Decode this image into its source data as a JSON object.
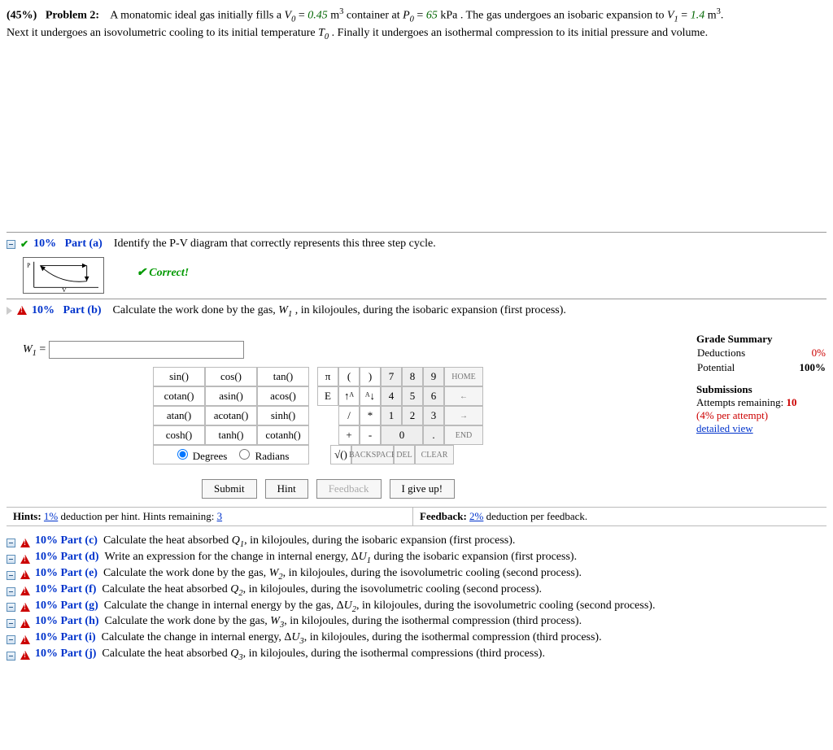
{
  "problem": {
    "percent": "(45%)",
    "label": "Problem 2:",
    "text_before_v0": "A monatomic ideal gas initially fills a ",
    "v0_sym": "V",
    "v0_sub": "0",
    "v0_eq": " = ",
    "v0_val": "0.45",
    "v0_unit": " m",
    "v0_exp": "3",
    "text_mid1": " container at ",
    "p0_sym": "P",
    "p0_sub": "0",
    "p0_eq": " = ",
    "p0_val": "65",
    "p0_unit": " kPa",
    "text_mid2": ". The gas undergoes an isobaric expansion to ",
    "v1_sym": "V",
    "v1_sub": "1",
    "v1_eq": " = ",
    "v1_val": "1.4",
    "v1_unit": " m",
    "v1_exp": "3",
    "dot": ".",
    "line2a": "Next it undergoes an isovolumetric cooling to its initial temperature ",
    "t0_sym": "T",
    "t0_sub": "0",
    "line2b": ". Finally it undergoes an isothermal compression to its initial pressure and volume."
  },
  "part_a": {
    "percent": "10%",
    "label": "Part (a)",
    "text": "Identify the P-V diagram that correctly represents this three step cycle.",
    "correct": "Correct!",
    "p_axis": "P",
    "v_axis": "V"
  },
  "part_b": {
    "percent": "10%",
    "label": "Part (b)",
    "text_pre": "Calculate the work done by the gas, ",
    "w1_sym": "W",
    "w1_sub": "1",
    "text_post": ", in kilojoules, during the isobaric expansion (first process).",
    "input_label_sym": "W",
    "input_label_sub": "1",
    "input_label_eq": " = "
  },
  "grade": {
    "title": "Grade Summary",
    "ded_label": "Deductions",
    "ded_val": "0%",
    "pot_label": "Potential",
    "pot_val": "100%",
    "sub_title": "Submissions",
    "attempts_label": "Attempts remaining: ",
    "attempts_val": "10",
    "per_attempt": "(4% per attempt)",
    "detailed": "detailed view"
  },
  "keypad": {
    "fns": [
      [
        "sin()",
        "cos()",
        "tan()"
      ],
      [
        "cotan()",
        "asin()",
        "acos()"
      ],
      [
        "atan()",
        "acotan()",
        "sinh()"
      ],
      [
        "cosh()",
        "tanh()",
        "cotanh()"
      ]
    ],
    "syms_row1": [
      "π",
      "(",
      ")"
    ],
    "syms_row2": [
      "E",
      "↑ᴬ",
      "ᴬ↓"
    ],
    "syms_row3": [
      "/",
      "*"
    ],
    "syms_row4": [
      "+",
      "-"
    ],
    "syms_row5": [
      "√()"
    ],
    "nums": [
      [
        "7",
        "8",
        "9"
      ],
      [
        "4",
        "5",
        "6"
      ],
      [
        "1",
        "2",
        "3"
      ]
    ],
    "zero": "0",
    "dot": ".",
    "ctls": [
      "HOME",
      "←",
      "→",
      "END"
    ],
    "backspace": "BACKSPACE",
    "del": "DEL",
    "clear": "CLEAR",
    "deg": "Degrees",
    "rad": "Radians"
  },
  "buttons": {
    "submit": "Submit",
    "hint": "Hint",
    "feedback": "Feedback",
    "giveup": "I give up!"
  },
  "infobar": {
    "hints_label": "Hints: ",
    "hints_pct": "1%",
    "hints_text": " deduction per hint. Hints remaining: ",
    "hints_rem": "3",
    "fb_label": "Feedback: ",
    "fb_pct": "2%",
    "fb_text": " deduction per feedback."
  },
  "parts_rest": [
    {
      "pct": "10%",
      "label": "Part (c)",
      "pre": "Calculate the heat absorbed ",
      "sym": "Q",
      "sub": "1",
      "post": ", in kilojoules, during the isobaric expansion (first process)."
    },
    {
      "pct": "10%",
      "label": "Part (d)",
      "pre": "Write an expression for the change in internal energy, Δ",
      "sym": "U",
      "sub": "1",
      "post": " during the isobaric expansion (first process)."
    },
    {
      "pct": "10%",
      "label": "Part (e)",
      "pre": "Calculate the work done by the gas, ",
      "sym": "W",
      "sub": "2",
      "post": ", in kilojoules, during the isovolumetric cooling (second process)."
    },
    {
      "pct": "10%",
      "label": "Part (f)",
      "pre": "Calculate the heat absorbed ",
      "sym": "Q",
      "sub": "2",
      "post": ", in kilojoules, during the isovolumetric cooling (second process)."
    },
    {
      "pct": "10%",
      "label": "Part (g)",
      "pre": "Calculate the change in internal energy by the gas, Δ",
      "sym": "U",
      "sub": "2",
      "post": ", in kilojoules, during the isovolumetric cooling (second process)."
    },
    {
      "pct": "10%",
      "label": "Part (h)",
      "pre": "Calculate the work done by the gas, ",
      "sym": "W",
      "sub": "3",
      "post": ", in kilojoules, during the isothermal compression (third process)."
    },
    {
      "pct": "10%",
      "label": "Part (i)",
      "pre": "Calculate the change in internal energy, Δ",
      "sym": "U",
      "sub": "3",
      "post": ", in kilojoules, during the isothermal compression (third process)."
    },
    {
      "pct": "10%",
      "label": "Part (j)",
      "pre": "Calculate the heat absorbed ",
      "sym": "Q",
      "sub": "3",
      "post": ", in kilojoules, during the isothermal compressions (third process)."
    }
  ]
}
